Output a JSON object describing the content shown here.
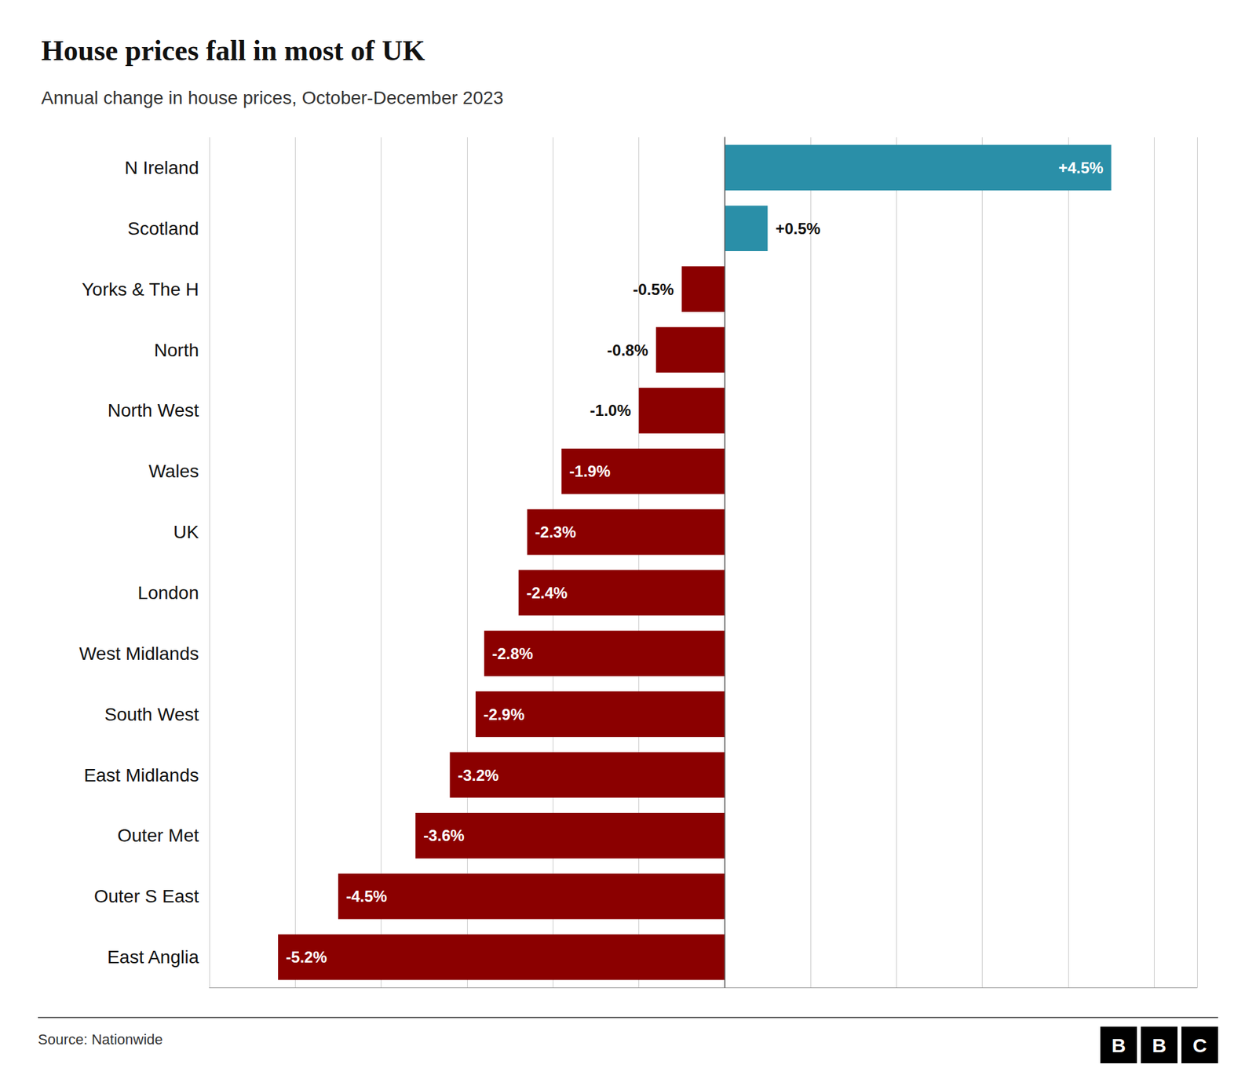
{
  "chart_data": {
    "type": "bar",
    "orientation": "horizontal",
    "title": "House prices fall in most of UK",
    "subtitle": "Annual change in house prices, October-December 2023",
    "annotations": [
      "Source: Nationwide",
      "BBC"
    ],
    "categories": [
      "N Ireland",
      "Scotland",
      "Yorks & The H",
      "North",
      "North West",
      "Wales",
      "UK",
      "London",
      "West Midlands",
      "South West",
      "East Midlands",
      "Outer Met",
      "Outer S East",
      "East Anglia"
    ],
    "values": [
      4.5,
      0.5,
      -0.5,
      -0.8,
      -1.0,
      -1.9,
      -2.3,
      -2.4,
      -2.8,
      -2.9,
      -3.2,
      -3.6,
      -4.5,
      -5.2
    ],
    "value_labels": [
      "+4.5%",
      "+0.5%",
      "-0.5%",
      "-0.8%",
      "-1.0%",
      "-1.9%",
      "-2.3%",
      "-2.4%",
      "-2.8%",
      "-2.9%",
      "-3.2%",
      "-3.6%",
      "-4.5%",
      "-5.2%"
    ],
    "colors": [
      "#2a8fa8",
      "#2a8fa8",
      "#8b0000",
      "#8b0000",
      "#8b0000",
      "#8b0000",
      "#8b0000",
      "#8b0000",
      "#8b0000",
      "#8b0000",
      "#8b0000",
      "#8b0000",
      "#8b0000",
      "#8b0000"
    ],
    "xlim": [
      -6.0,
      5.5
    ],
    "xticks": [
      -6,
      -5,
      -4,
      -3,
      -2,
      -1,
      0,
      1,
      2,
      3,
      4,
      5
    ],
    "grid": true,
    "tick_labels": "y"
  }
}
